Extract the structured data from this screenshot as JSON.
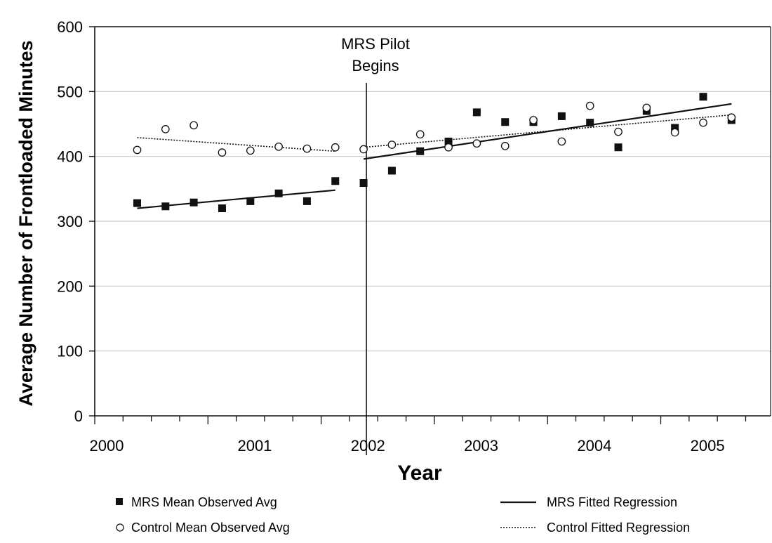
{
  "chart_data": {
    "type": "scatter",
    "title": "",
    "xlabel": "Year",
    "ylabel": "Average Number of Frontloaded Minutes",
    "xlim": [
      2000,
      2005.8
    ],
    "ylim": [
      0,
      600
    ],
    "x_ticks": [
      "2000",
      "2001",
      "2002",
      "2003",
      "2004",
      "2005"
    ],
    "y_ticks": [
      "0",
      "100",
      "200",
      "300",
      "400",
      "500",
      "600"
    ],
    "grid": "horizontal",
    "legend_position": "bottom",
    "annotation": {
      "lines": [
        "MRS Pilot",
        "Begins"
      ],
      "x": 2002.4
    },
    "series": [
      {
        "name": "MRS Mean Observed Avg",
        "kind": "points",
        "marker": "filled-square",
        "x": [
          2000.375,
          2000.625,
          2000.875,
          2001.125,
          2001.375,
          2001.625,
          2001.875,
          2002.125,
          2002.375,
          2002.625,
          2002.875,
          2003.125,
          2003.375,
          2003.625,
          2003.875,
          2004.125,
          2004.375,
          2004.625,
          2004.875,
          2005.125,
          2005.375,
          2005.625
        ],
        "y": [
          328,
          323,
          329,
          320,
          331,
          343,
          331,
          362,
          359,
          378,
          408,
          423,
          468,
          453,
          453,
          462,
          452,
          414,
          470,
          444,
          492,
          456
        ]
      },
      {
        "name": "Control Mean Observed Avg",
        "kind": "points",
        "marker": "open-circle",
        "x": [
          2000.375,
          2000.625,
          2000.875,
          2001.125,
          2001.375,
          2001.625,
          2001.875,
          2002.125,
          2002.375,
          2002.625,
          2002.875,
          2003.125,
          2003.375,
          2003.625,
          2003.875,
          2004.125,
          2004.375,
          2004.625,
          2004.875,
          2005.125,
          2005.375,
          2005.625
        ],
        "y": [
          410,
          442,
          448,
          406,
          409,
          415,
          412,
          414,
          411,
          418,
          434,
          414,
          420,
          416,
          456,
          423,
          478,
          438,
          475,
          437,
          452,
          460
        ]
      },
      {
        "name": "MRS Fitted Regression",
        "kind": "line",
        "style": "solid",
        "segments": [
          {
            "x": [
              2000.375,
              2002.125
            ],
            "y": [
              320,
              348
            ]
          },
          {
            "x": [
              2002.375,
              2005.625
            ],
            "y": [
              396,
              481
            ]
          }
        ]
      },
      {
        "name": "Control Fitted Regression",
        "kind": "line",
        "style": "dotted",
        "segments": [
          {
            "x": [
              2000.375,
              2002.125
            ],
            "y": [
              429,
              408
            ]
          },
          {
            "x": [
              2002.375,
              2005.625
            ],
            "y": [
              414,
              464
            ]
          }
        ]
      }
    ]
  },
  "colors": {
    "ink": "#111111",
    "grid": "#c9c9c9",
    "background": "#ffffff"
  }
}
